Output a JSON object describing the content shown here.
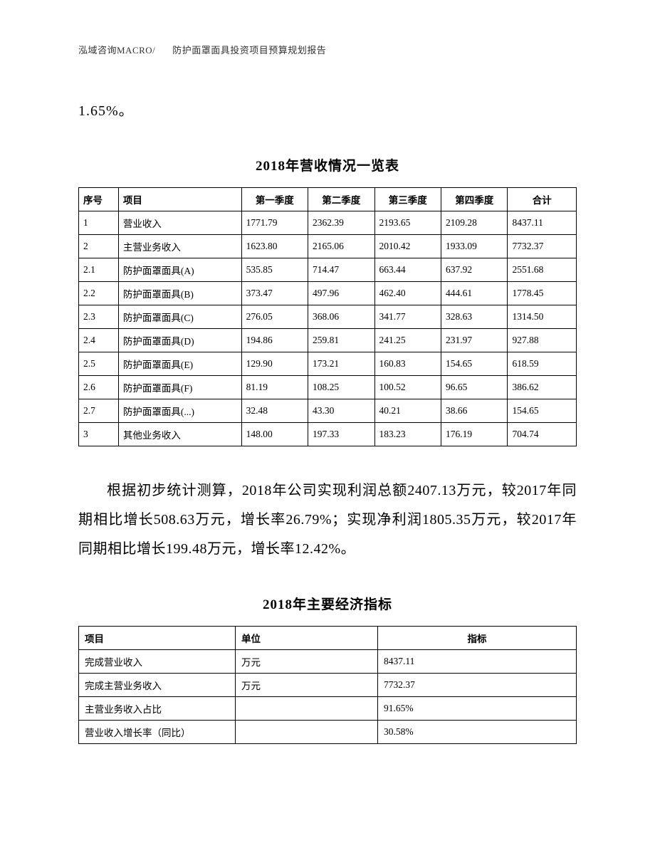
{
  "header": {
    "left": "泓域咨询MACRO/",
    "right": "防护面罩面具投资项目预算规划报告"
  },
  "fragment_top": "1.65%。",
  "table1": {
    "title": "2018年营收情况一览表",
    "columns": [
      "序号",
      "项目",
      "第一季度",
      "第二季度",
      "第三季度",
      "第四季度",
      "合计"
    ],
    "rows": [
      [
        "1",
        "营业收入",
        "1771.79",
        "2362.39",
        "2193.65",
        "2109.28",
        "8437.11"
      ],
      [
        "2",
        "主营业务收入",
        "1623.80",
        "2165.06",
        "2010.42",
        "1933.09",
        "7732.37"
      ],
      [
        "2.1",
        "防护面罩面具(A)",
        "535.85",
        "714.47",
        "663.44",
        "637.92",
        "2551.68"
      ],
      [
        "2.2",
        "防护面罩面具(B)",
        "373.47",
        "497.96",
        "462.40",
        "444.61",
        "1778.45"
      ],
      [
        "2.3",
        "防护面罩面具(C)",
        "276.05",
        "368.06",
        "341.77",
        "328.63",
        "1314.50"
      ],
      [
        "2.4",
        "防护面罩面具(D)",
        "194.86",
        "259.81",
        "241.25",
        "231.97",
        "927.88"
      ],
      [
        "2.5",
        "防护面罩面具(E)",
        "129.90",
        "173.21",
        "160.83",
        "154.65",
        "618.59"
      ],
      [
        "2.6",
        "防护面罩面具(F)",
        "81.19",
        "108.25",
        "100.52",
        "96.65",
        "386.62"
      ],
      [
        "2.7",
        "防护面罩面具(...)",
        "32.48",
        "43.30",
        "40.21",
        "38.66",
        "154.65"
      ],
      [
        "3",
        "其他业务收入",
        "148.00",
        "197.33",
        "183.23",
        "176.19",
        "704.74"
      ]
    ]
  },
  "paragraph": "根据初步统计测算，2018年公司实现利润总额2407.13万元，较2017年同期相比增长508.63万元，增长率26.79%；实现净利润1805.35万元，较2017年同期相比增长199.48万元，增长率12.42%。",
  "table2": {
    "title": "2018年主要经济指标",
    "columns": [
      "项目",
      "单位",
      "指标"
    ],
    "rows": [
      [
        "完成营业收入",
        "万元",
        "8437.11"
      ],
      [
        "完成主营业务收入",
        "万元",
        "7732.37"
      ],
      [
        "主营业务收入占比",
        "",
        "91.65%"
      ],
      [
        "营业收入增长率（同比）",
        "",
        "30.58%"
      ]
    ]
  },
  "style": {
    "page_bg": "#ffffff",
    "text_color": "#000000",
    "border_color": "#000000",
    "header_fontsize": 13,
    "body_fontsize": 20,
    "table_fontsize": 13.5,
    "title_fontsize": 19,
    "font_family": "SimSun"
  }
}
